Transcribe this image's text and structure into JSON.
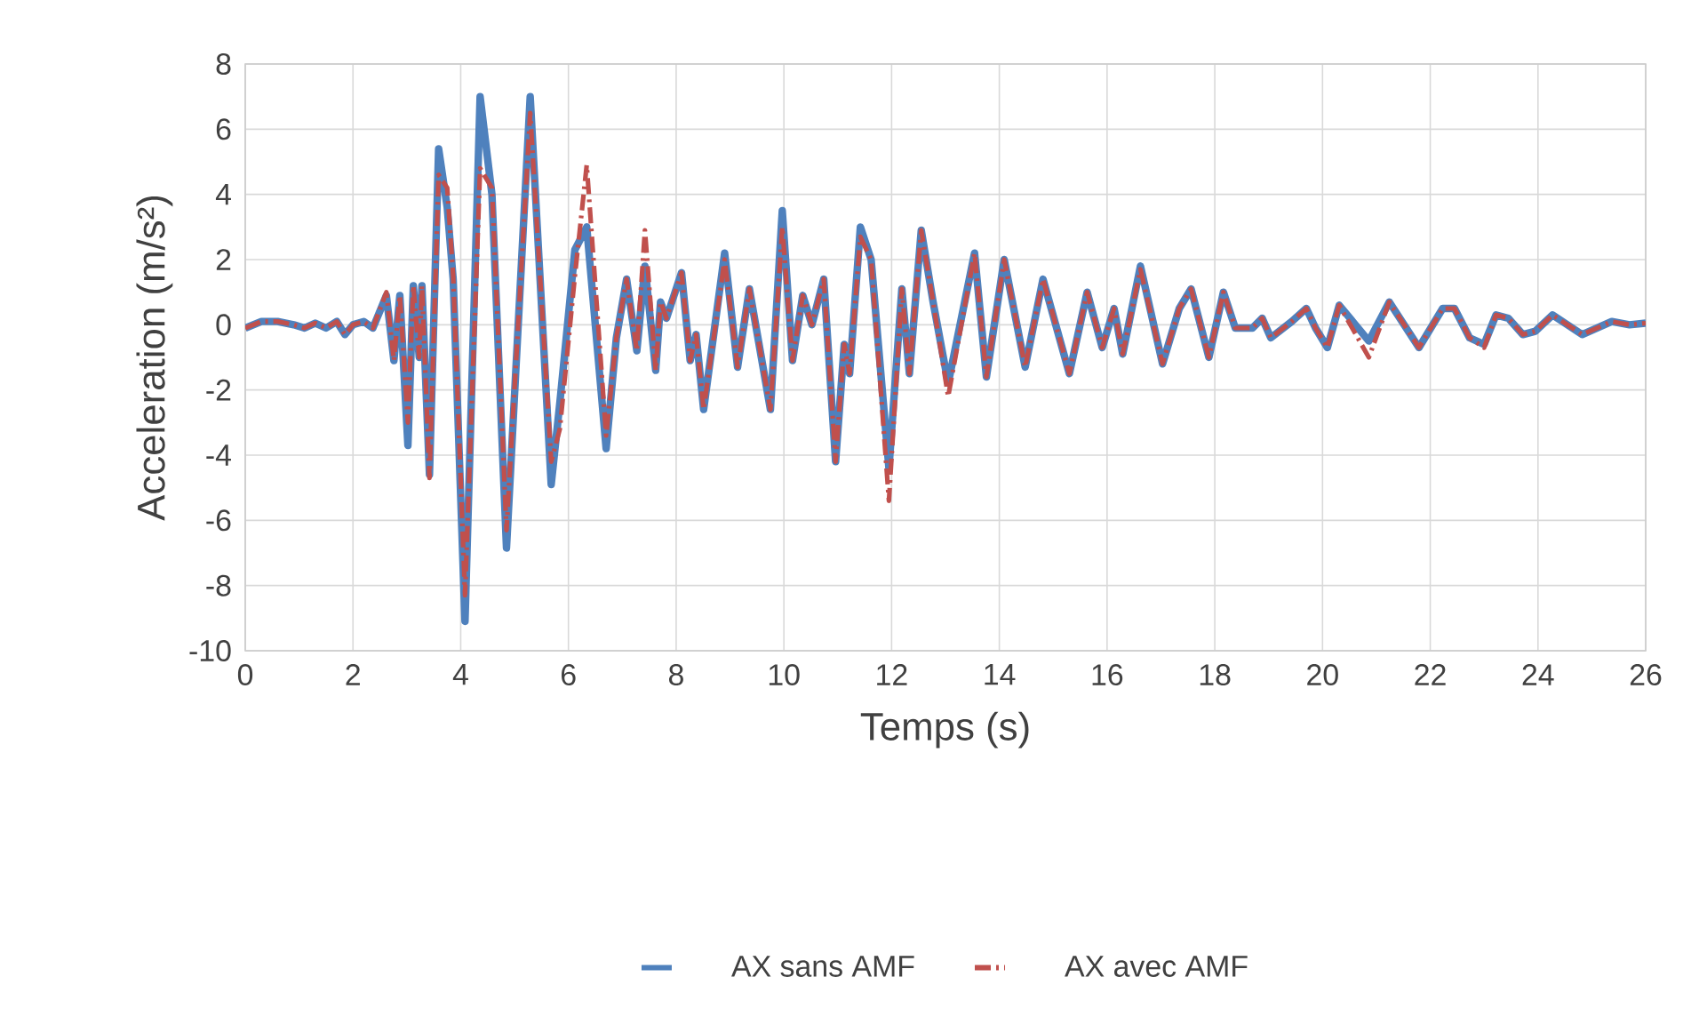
{
  "chart_data": {
    "type": "line",
    "xlabel": "Temps (s)",
    "ylabel": "Acceleration (m/s²)",
    "x": [
      0,
      0.3,
      0.6,
      0.9,
      1.1,
      1.3,
      1.5,
      1.7,
      1.85,
      2.0,
      2.2,
      2.37,
      2.62,
      2.76,
      2.87,
      3.02,
      3.12,
      3.23,
      3.28,
      3.42,
      3.59,
      3.75,
      3.86,
      4.08,
      4.36,
      4.58,
      4.85,
      5.29,
      5.68,
      5.84,
      6.12,
      6.34,
      6.7,
      6.89,
      7.08,
      7.27,
      7.42,
      7.62,
      7.71,
      7.82,
      8.1,
      8.26,
      8.37,
      8.51,
      8.9,
      9.14,
      9.36,
      9.75,
      9.97,
      10.16,
      10.35,
      10.52,
      10.74,
      10.96,
      11.12,
      11.22,
      11.42,
      11.62,
      11.95,
      12.19,
      12.33,
      12.55,
      12.77,
      13.05,
      13.54,
      13.76,
      14.09,
      14.48,
      14.81,
      15.3,
      15.63,
      15.91,
      16.13,
      16.29,
      16.62,
      17.03,
      17.34,
      17.56,
      17.89,
      18.16,
      18.38,
      18.7,
      18.88,
      19.04,
      19.43,
      19.7,
      19.87,
      20.09,
      20.31,
      20.86,
      21.24,
      21.79,
      22.23,
      22.45,
      22.73,
      23.0,
      23.22,
      23.45,
      23.72,
      23.95,
      24.27,
      24.82,
      25.37,
      25.7,
      26
    ],
    "series": [
      {
        "name": "AX sans AMF",
        "color": "#4f81bd",
        "line_style": "solid",
        "values": [
          -0.1,
          0.1,
          0.1,
          0,
          -0.1,
          0.05,
          -0.1,
          0.1,
          -0.3,
          0,
          0.1,
          -0.1,
          0.9,
          -1.1,
          0.9,
          -3.7,
          1.2,
          -1.0,
          1.2,
          -4.6,
          5.4,
          3.6,
          1.4,
          -9.1,
          7.0,
          4.0,
          -6.85,
          7.0,
          -4.9,
          -2.4,
          2.3,
          3.0,
          -3.8,
          -0.4,
          1.4,
          -0.8,
          1.8,
          -1.4,
          0.7,
          0.2,
          1.6,
          -1.1,
          -0.3,
          -2.6,
          2.2,
          -1.3,
          1.1,
          -2.6,
          3.5,
          -1.1,
          0.9,
          0,
          1.4,
          -4.2,
          -0.6,
          -1.5,
          3.0,
          2.0,
          -4.4,
          1.1,
          -1.5,
          2.9,
          0.7,
          -1.8,
          2.2,
          -1.6,
          2.0,
          -1.3,
          1.4,
          -1.5,
          1.0,
          -0.7,
          0.5,
          -0.9,
          1.8,
          -1.2,
          0.5,
          1.1,
          -1.0,
          1.0,
          -0.1,
          -0.1,
          0.2,
          -0.4,
          0.1,
          0.5,
          -0.1,
          -0.7,
          0.6,
          -0.5,
          0.7,
          -0.7,
          0.5,
          0.5,
          -0.4,
          -0.6,
          0.3,
          0.2,
          -0.3,
          -0.2,
          0.3,
          -0.3,
          0.1,
          0,
          0.05
        ]
      },
      {
        "name": "AX avec AMF",
        "color": "#c0504d",
        "line_style": "dashed",
        "values": [
          -0.1,
          0.1,
          0.1,
          0,
          -0.1,
          0.05,
          -0.1,
          0.1,
          -0.3,
          0,
          0.1,
          -0.1,
          1.0,
          -1.1,
          0.9,
          -3.0,
          1.2,
          -1.0,
          1.2,
          -4.7,
          4.6,
          4.2,
          1.5,
          -8.3,
          4.8,
          4.2,
          -6.3,
          6.5,
          -4.2,
          -3.2,
          1.5,
          4.9,
          -3.4,
          -0.4,
          1.4,
          -0.8,
          2.9,
          -1.4,
          0.7,
          0.2,
          1.6,
          -1.1,
          -0.3,
          -2.6,
          2.0,
          -1.3,
          1.1,
          -2.6,
          3.0,
          -1.1,
          0.9,
          0,
          1.4,
          -4.2,
          -0.6,
          -1.5,
          2.7,
          2.0,
          -5.4,
          1.1,
          -1.5,
          2.9,
          0.7,
          -2.2,
          2.2,
          -1.6,
          2.0,
          -1.3,
          1.4,
          -1.5,
          1.0,
          -0.7,
          0.5,
          -0.9,
          1.7,
          -1.2,
          0.5,
          1.1,
          -1.0,
          1.0,
          -0.1,
          -0.1,
          0.2,
          -0.4,
          0.1,
          0.5,
          -0.1,
          -0.7,
          0.6,
          -1.0,
          0.7,
          -0.7,
          0.5,
          0.5,
          -0.4,
          -0.7,
          0.3,
          0.2,
          -0.3,
          -0.2,
          0.3,
          -0.3,
          0.1,
          0,
          0.05
        ]
      }
    ],
    "xlim": [
      0,
      26
    ],
    "xticks": [
      0,
      2,
      4,
      6,
      8,
      10,
      12,
      14,
      16,
      18,
      20,
      22,
      24,
      26
    ],
    "ylim": [
      -10,
      8
    ],
    "yticks": [
      -10,
      -8,
      -6,
      -4,
      -2,
      0,
      2,
      4,
      6,
      8
    ],
    "grid": true,
    "legend": "bottom",
    "marker": "none"
  }
}
